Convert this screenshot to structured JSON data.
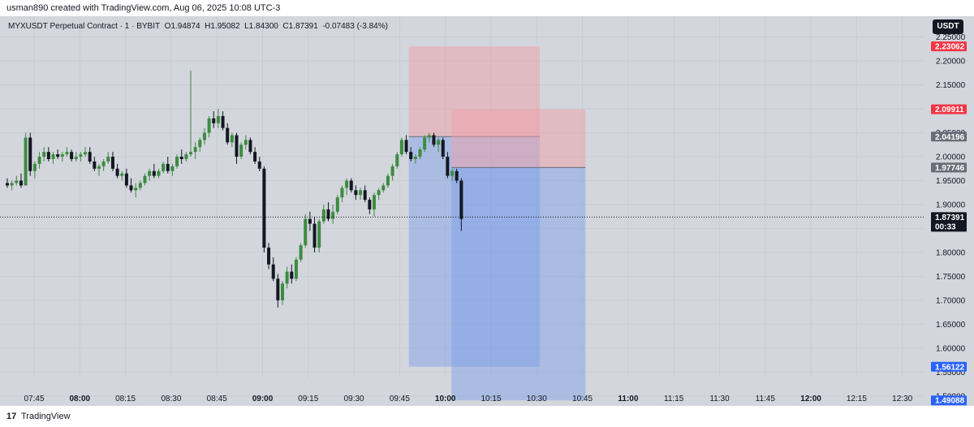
{
  "header": {
    "credit": "usman890 created with TradingView.com, Aug 06, 2025 10:08 UTC-3"
  },
  "legend": {
    "symbol": "MYXUSDT Perpetual Contract · 1 · BYBIT",
    "open": "O1.94874",
    "high": "H1.95082",
    "low": "L1.84300",
    "close": "C1.87391",
    "change": "-0.07483 (-3.84%)"
  },
  "currency_button": "USDT",
  "footer": {
    "logo": "17",
    "brand": "TradingView"
  },
  "colors": {
    "background": "#d3d6dd",
    "up": "#3d8b40",
    "down": "#131722",
    "stop_zone": "#f0a0a8",
    "target_zone": "#7a9ee8",
    "tag_red": "#f23645",
    "tag_blue": "#2962ff",
    "tag_gray": "#6a6d78",
    "tag_black": "#131722"
  },
  "chart_data": {
    "type": "candlestick",
    "y_ticks": [
      "2.25000",
      "2.20000",
      "2.15000",
      "2.10000",
      "2.05000",
      "2.00000",
      "1.95000",
      "1.90000",
      "1.85000",
      "1.80000",
      "1.75000",
      "1.70000",
      "1.65000",
      "1.60000",
      "1.55000",
      "1.50000"
    ],
    "ylim": [
      1.4794,
      2.2935
    ],
    "x_ticks": [
      {
        "label": "07:45",
        "bold": false
      },
      {
        "label": "08:00",
        "bold": true
      },
      {
        "label": "08:15",
        "bold": false
      },
      {
        "label": "08:30",
        "bold": false
      },
      {
        "label": "08:45",
        "bold": false
      },
      {
        "label": "09:00",
        "bold": true
      },
      {
        "label": "09:15",
        "bold": false
      },
      {
        "label": "09:30",
        "bold": false
      },
      {
        "label": "09:45",
        "bold": false
      },
      {
        "label": "10:00",
        "bold": true
      },
      {
        "label": "10:15",
        "bold": false
      },
      {
        "label": "10:30",
        "bold": false
      },
      {
        "label": "10:45",
        "bold": false
      },
      {
        "label": "11:00",
        "bold": true
      },
      {
        "label": "11:15",
        "bold": false
      },
      {
        "label": "11:30",
        "bold": false
      },
      {
        "label": "11:45",
        "bold": false
      },
      {
        "label": "12:00",
        "bold": true
      },
      {
        "label": "12:15",
        "bold": false
      },
      {
        "label": "12:30",
        "bold": false
      }
    ],
    "price_tags": [
      {
        "value": 2.23062,
        "label": "2.23062",
        "color": "#f23645"
      },
      {
        "value": 2.09911,
        "label": "2.09911",
        "color": "#f23645"
      },
      {
        "value": 2.04196,
        "label": "2.04196",
        "color": "#6a6d78"
      },
      {
        "value": 1.97746,
        "label": "1.97746",
        "color": "#6a6d78"
      },
      {
        "value": 1.87391,
        "label": "1.87391",
        "sub": "00:33",
        "color": "#131722"
      },
      {
        "value": 1.56122,
        "label": "1.56122",
        "color": "#2962ff"
      },
      {
        "value": 1.49088,
        "label": "1.49088",
        "color": "#2962ff"
      }
    ],
    "last_price": 1.87391,
    "positions": [
      {
        "start": "09:48",
        "end": "10:31",
        "entry": 2.04196,
        "stop": 2.23062,
        "target": 1.56122
      },
      {
        "start": "10:02",
        "end": "10:46",
        "entry": 1.97746,
        "stop": 2.09911,
        "target": 1.49088
      }
    ],
    "candles": [
      [
        1.945,
        1.955,
        1.935,
        1.94
      ],
      [
        1.94,
        1.95,
        1.93,
        1.945
      ],
      [
        1.945,
        1.96,
        1.94,
        1.95
      ],
      [
        1.95,
        1.965,
        1.935,
        1.94
      ],
      [
        1.94,
        2.05,
        1.94,
        2.04
      ],
      [
        2.04,
        2.05,
        1.96,
        1.97
      ],
      [
        1.97,
        1.99,
        1.955,
        1.985
      ],
      [
        1.985,
        2.01,
        1.975,
        2.0
      ],
      [
        2.0,
        2.02,
        1.99,
        2.01
      ],
      [
        2.01,
        2.02,
        1.99,
        1.995
      ],
      [
        1.995,
        2.01,
        1.985,
        2.005
      ],
      [
        2.005,
        2.015,
        1.995,
        2.0
      ],
      [
        2.0,
        2.01,
        1.99,
        2.005
      ],
      [
        2.005,
        2.02,
        2.0,
        2.01
      ],
      [
        2.01,
        2.015,
        1.99,
        1.995
      ],
      [
        1.995,
        2.01,
        1.99,
        2.0
      ],
      [
        2.0,
        2.01,
        1.99,
        2.005
      ],
      [
        2.005,
        2.02,
        2.0,
        2.01
      ],
      [
        2.01,
        2.02,
        1.985,
        1.99
      ],
      [
        1.99,
        2.0,
        1.97,
        1.975
      ],
      [
        1.975,
        1.985,
        1.96,
        1.98
      ],
      [
        1.98,
        1.995,
        1.97,
        1.99
      ],
      [
        1.99,
        2.01,
        1.985,
        2.0
      ],
      [
        2.0,
        2.01,
        1.97,
        1.975
      ],
      [
        1.975,
        1.985,
        1.955,
        1.96
      ],
      [
        1.96,
        1.97,
        1.95,
        1.965
      ],
      [
        1.965,
        1.975,
        1.935,
        1.94
      ],
      [
        1.94,
        1.955,
        1.925,
        1.93
      ],
      [
        1.93,
        1.945,
        1.915,
        1.935
      ],
      [
        1.935,
        1.95,
        1.93,
        1.945
      ],
      [
        1.945,
        1.965,
        1.94,
        1.96
      ],
      [
        1.96,
        1.975,
        1.95,
        1.97
      ],
      [
        1.97,
        1.985,
        1.955,
        1.96
      ],
      [
        1.96,
        1.975,
        1.955,
        1.97
      ],
      [
        1.97,
        1.99,
        1.965,
        1.985
      ],
      [
        1.985,
        2.0,
        1.965,
        1.97
      ],
      [
        1.97,
        1.985,
        1.96,
        1.98
      ],
      [
        1.98,
        2.005,
        1.975,
        2.0
      ],
      [
        2.0,
        2.015,
        1.985,
        1.995
      ],
      [
        1.995,
        2.01,
        1.99,
        2.005
      ],
      [
        2.005,
        2.18,
        2.0,
        2.01
      ],
      [
        2.01,
        2.03,
        1.995,
        2.02
      ],
      [
        2.02,
        2.04,
        2.01,
        2.035
      ],
      [
        2.035,
        2.06,
        2.025,
        2.05
      ],
      [
        2.05,
        2.085,
        2.04,
        2.08
      ],
      [
        2.08,
        2.095,
        2.06,
        2.07
      ],
      [
        2.07,
        2.1,
        2.06,
        2.085
      ],
      [
        2.085,
        2.095,
        2.055,
        2.06
      ],
      [
        2.06,
        2.07,
        2.025,
        2.03
      ],
      [
        2.03,
        2.05,
        2.02,
        2.045
      ],
      [
        2.045,
        2.05,
        1.985,
        2.0
      ],
      [
        2.0,
        2.03,
        1.995,
        2.025
      ],
      [
        2.025,
        2.045,
        2.015,
        2.035
      ],
      [
        2.035,
        2.04,
        2.005,
        2.01
      ],
      [
        2.01,
        2.02,
        1.985,
        1.99
      ],
      [
        1.99,
        2.0,
        1.97,
        1.975
      ],
      [
        1.975,
        1.98,
        1.8,
        1.81
      ],
      [
        1.81,
        1.82,
        1.765,
        1.775
      ],
      [
        1.775,
        1.79,
        1.74,
        1.745
      ],
      [
        1.745,
        1.755,
        1.685,
        1.7
      ],
      [
        1.7,
        1.74,
        1.69,
        1.735
      ],
      [
        1.735,
        1.77,
        1.725,
        1.76
      ],
      [
        1.76,
        1.775,
        1.735,
        1.745
      ],
      [
        1.745,
        1.79,
        1.74,
        1.785
      ],
      [
        1.785,
        1.82,
        1.78,
        1.815
      ],
      [
        1.815,
        1.88,
        1.81,
        1.87
      ],
      [
        1.87,
        1.885,
        1.845,
        1.86
      ],
      [
        1.86,
        1.875,
        1.8,
        1.81
      ],
      [
        1.81,
        1.87,
        1.8,
        1.865
      ],
      [
        1.865,
        1.9,
        1.86,
        1.89
      ],
      [
        1.89,
        1.905,
        1.865,
        1.87
      ],
      [
        1.87,
        1.9,
        1.86,
        1.885
      ],
      [
        1.885,
        1.92,
        1.88,
        1.915
      ],
      [
        1.915,
        1.94,
        1.905,
        1.935
      ],
      [
        1.935,
        1.955,
        1.92,
        1.95
      ],
      [
        1.95,
        1.955,
        1.925,
        1.93
      ],
      [
        1.93,
        1.94,
        1.91,
        1.92
      ],
      [
        1.92,
        1.935,
        1.91,
        1.93
      ],
      [
        1.93,
        1.94,
        1.905,
        1.91
      ],
      [
        1.91,
        1.915,
        1.88,
        1.89
      ],
      [
        1.89,
        1.925,
        1.875,
        1.92
      ],
      [
        1.92,
        1.935,
        1.91,
        1.93
      ],
      [
        1.93,
        1.945,
        1.925,
        1.94
      ],
      [
        1.94,
        1.965,
        1.935,
        1.96
      ],
      [
        1.96,
        1.985,
        1.95,
        1.98
      ],
      [
        1.98,
        2.01,
        1.975,
        2.005
      ],
      [
        2.005,
        2.04,
        2.0,
        2.035
      ],
      [
        2.035,
        2.045,
        2.005,
        2.01
      ],
      [
        2.01,
        2.02,
        1.99,
        1.995
      ],
      [
        1.995,
        2.005,
        1.985,
        2.0
      ],
      [
        2.0,
        2.02,
        1.995,
        2.015
      ],
      [
        2.015,
        2.045,
        2.01,
        2.04
      ],
      [
        2.04,
        2.05,
        2.03,
        2.045
      ],
      [
        2.045,
        2.05,
        2.02,
        2.025
      ],
      [
        2.025,
        2.04,
        2.01,
        2.035
      ],
      [
        2.035,
        2.04,
        1.995,
        2.0
      ],
      [
        2.0,
        2.01,
        1.955,
        1.96
      ],
      [
        1.96,
        1.975,
        1.95,
        1.97
      ],
      [
        1.97,
        1.975,
        1.945,
        1.95
      ],
      [
        1.95,
        1.955,
        1.845,
        1.87
      ]
    ]
  }
}
